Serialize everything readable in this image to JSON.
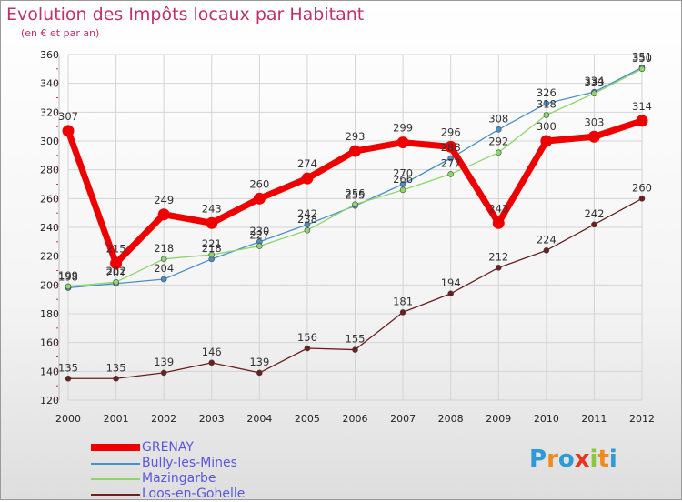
{
  "header": {
    "title": "Evolution des Impôts locaux par Habitant",
    "subtitle": "(en € et par an)"
  },
  "logo": {
    "letters": [
      "P",
      "r",
      "o",
      "x",
      "i",
      "t",
      "i"
    ],
    "colors": [
      "#2e9ad6",
      "#f08a1c",
      "#2e9ad6",
      "#e8361e",
      "#8cc63f",
      "#f08a1c",
      "#2e9ad6"
    ]
  },
  "chart_data": {
    "type": "line",
    "title": "Evolution des Impôts locaux par Habitant",
    "subtitle": "(en € et par an)",
    "xlabel": "",
    "ylabel": "",
    "x": [
      "2000",
      "2001",
      "2002",
      "2003",
      "2004",
      "2005",
      "2006",
      "2007",
      "2008",
      "2009",
      "2010",
      "2011",
      "2012"
    ],
    "ylim": [
      120,
      360
    ],
    "yticks": [
      120,
      140,
      160,
      180,
      200,
      220,
      240,
      260,
      280,
      300,
      320,
      340,
      360
    ],
    "grid": true,
    "legend_position": "bottom-left",
    "series": [
      {
        "name": "GRENAY",
        "color": "#ee0000",
        "values": [
          307,
          215,
          249,
          243,
          260,
          274,
          293,
          299,
          296,
          243,
          300,
          303,
          314
        ],
        "labels": [
          "307",
          "215",
          "249",
          "243",
          "260",
          "274",
          "293",
          "299",
          "296",
          "243",
          "300",
          "303",
          "314"
        ]
      },
      {
        "name": "Bully-les-Mines",
        "color": "#4a90c8",
        "values": [
          198,
          201,
          204,
          218,
          230,
          242,
          255,
          270,
          288,
          308,
          326,
          334,
          351
        ],
        "labels": [
          "198",
          "201",
          "204",
          "218",
          "230",
          "242",
          "255",
          "270",
          "288",
          "308",
          "326",
          "334",
          "351"
        ]
      },
      {
        "name": "Mazingarbe",
        "color": "#8dd66b",
        "values": [
          199,
          202,
          218,
          221,
          227,
          238,
          256,
          266,
          277,
          292,
          318,
          333,
          350
        ],
        "labels": [
          "199",
          "202",
          "218",
          "221",
          "227",
          "238",
          "256",
          "266",
          "277",
          "292",
          "318",
          "333",
          "350"
        ]
      },
      {
        "name": "Loos-en-Gohelle",
        "color": "#6b1f1f",
        "values": [
          135,
          135,
          139,
          146,
          139,
          156,
          155,
          181,
          194,
          212,
          224,
          242,
          260
        ],
        "labels": [
          "135",
          "135",
          "139",
          "146",
          "139",
          "156",
          "155",
          "181",
          "194",
          "212",
          "224",
          "242",
          "260"
        ]
      }
    ]
  }
}
